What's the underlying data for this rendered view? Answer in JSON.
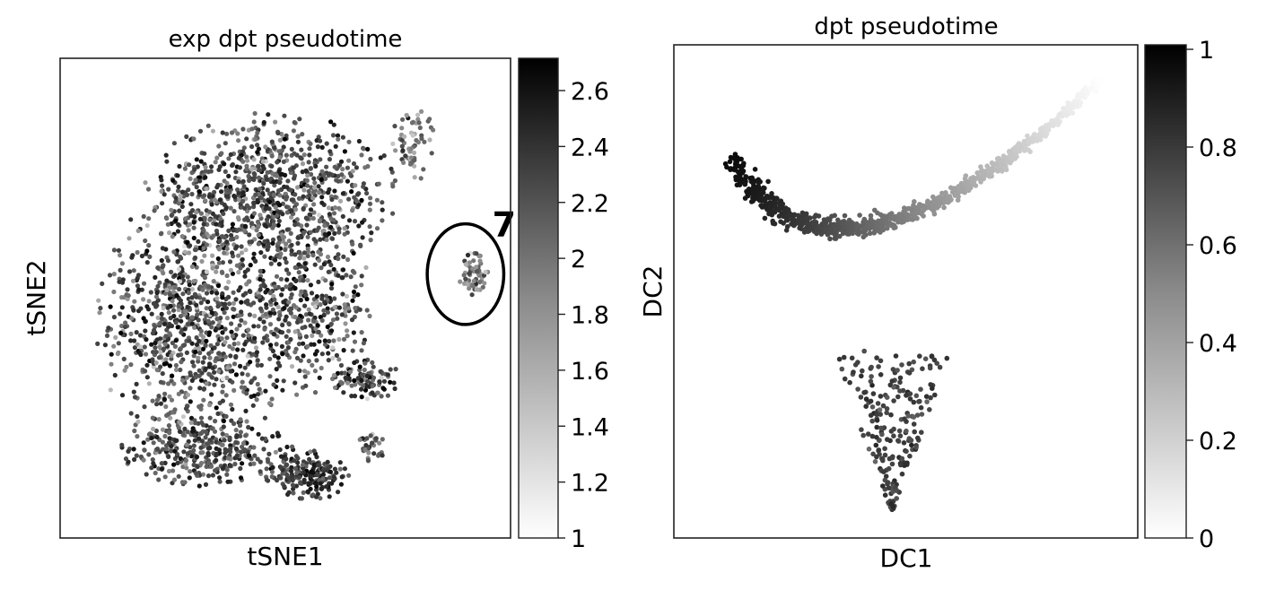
{
  "chart_data": [
    {
      "type": "scatter",
      "title": "exp dpt pseudotime",
      "xlabel": "tSNE1",
      "ylabel": "tSNE2",
      "colorbar": {
        "range": [
          1,
          2.72
        ],
        "ticks": [
          "1",
          "1.2",
          "1.4",
          "1.6",
          "1.8",
          "2",
          "2.2",
          "2.4",
          "2.6"
        ],
        "colormap": "greys"
      },
      "clusters": [
        {
          "cx": 0.47,
          "cy": 0.28,
          "rx": 0.27,
          "ry": 0.16,
          "n": 850,
          "value": 2.25,
          "spread": 0.35
        },
        {
          "cx": 0.3,
          "cy": 0.55,
          "rx": 0.21,
          "ry": 0.27,
          "n": 950,
          "value": 2.2,
          "spread": 0.4
        },
        {
          "cx": 0.55,
          "cy": 0.52,
          "rx": 0.14,
          "ry": 0.18,
          "n": 350,
          "value": 2.2,
          "spread": 0.4
        },
        {
          "cx": 0.32,
          "cy": 0.82,
          "rx": 0.19,
          "ry": 0.07,
          "n": 300,
          "value": 2.25,
          "spread": 0.3
        },
        {
          "cx": 0.55,
          "cy": 0.87,
          "rx": 0.09,
          "ry": 0.05,
          "n": 180,
          "value": 2.4,
          "spread": 0.25
        },
        {
          "cx": 0.68,
          "cy": 0.67,
          "rx": 0.07,
          "ry": 0.05,
          "n": 90,
          "value": 2.3,
          "spread": 0.4
        },
        {
          "cx": 0.69,
          "cy": 0.81,
          "rx": 0.03,
          "ry": 0.03,
          "n": 30,
          "value": 2.1,
          "spread": 0.3
        },
        {
          "cx": 0.78,
          "cy": 0.18,
          "rx": 0.05,
          "ry": 0.08,
          "n": 60,
          "value": 1.8,
          "spread": 0.35
        },
        {
          "cx": 0.92,
          "cy": 0.45,
          "rx": 0.035,
          "ry": 0.05,
          "n": 55,
          "value": 1.85,
          "spread": 0.35
        }
      ],
      "annotation": {
        "label": "7",
        "cx": 0.9,
        "cy": 0.45,
        "rx": 0.085,
        "ry": 0.105
      }
    },
    {
      "type": "scatter",
      "title": "dpt pseudotime",
      "xlabel": "DC1",
      "ylabel": "DC2",
      "colorbar": {
        "range": [
          0,
          1
        ],
        "ticks": [
          "0",
          "0.2",
          "0.4",
          "0.6",
          "0.8",
          "1"
        ],
        "colormap": "greys"
      },
      "curve": [
        [
          0.12,
          0.23
        ],
        [
          0.35,
          0.58
        ],
        [
          0.92,
          0.07
        ]
      ],
      "curve_points": 950,
      "bottom_cluster": {
        "n": 220,
        "apex": [
          0.47,
          0.95
        ],
        "top_y": 0.62,
        "half_width_top": 0.13,
        "value": 0.73
      }
    }
  ]
}
